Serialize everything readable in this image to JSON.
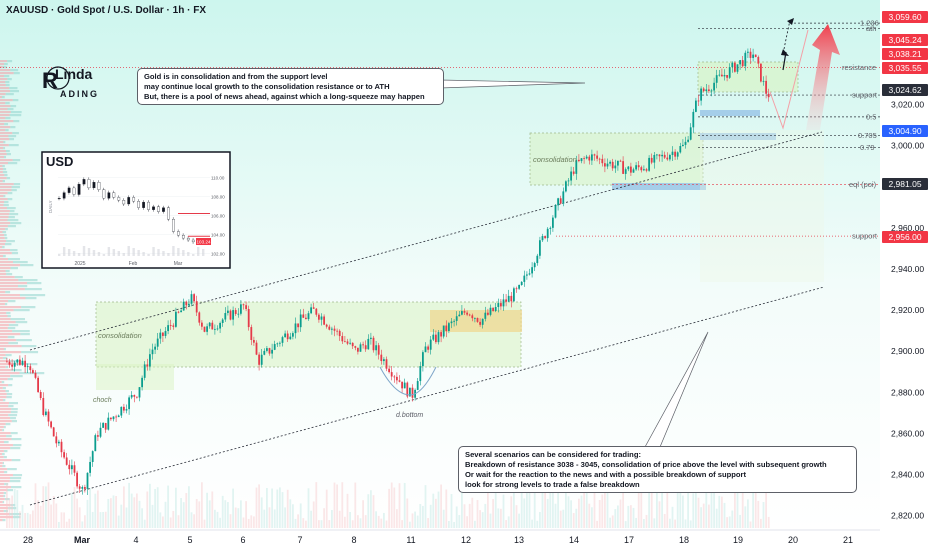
{
  "header": {
    "title": "XAUUSD · Gold Spot / U.S. Dollar · 1h · FX"
  },
  "logo": {
    "text_top": "Linda",
    "text_bottom": "ADING",
    "letter": "R"
  },
  "colors": {
    "up": "#0a9d8e",
    "down": "#e53a49",
    "price_box_red": "#f23645",
    "price_box_blue": "#2962ff",
    "neutral_box": "#2a2e39",
    "zone_green": "#c8f0b4",
    "zone_yellow": "#f0d58c"
  },
  "callouts": {
    "top": [
      "Gold is in consolidation and from the support level",
      "may continue local growth to the consolidation resistance or to ATH",
      "But, there is a pool of news ahead, against which a long-squeeze may happen"
    ],
    "bottom": [
      "Several scenarios can be considered for trading:",
      "Breakdown of resistance 3038 - 3045, consolidation of price above the level with subsequent growth",
      "Or wait for the reaction to the news and with a possible breakdown of support",
      "look for strong levels to trade a false breakdown"
    ]
  },
  "chart_data": [
    {
      "type": "candlestick",
      "title": "XAUUSD · Gold Spot / U.S. Dollar · 1h · FX",
      "x_ticks": [
        "28",
        "Mar",
        "4",
        "5",
        "6",
        "7",
        "8",
        "11",
        "12",
        "13",
        "14",
        "17",
        "18",
        "19",
        "20",
        "21"
      ],
      "y_ticks": [
        2820,
        2840,
        2860,
        2880,
        2900,
        2920,
        2940,
        2960,
        3000,
        3020
      ],
      "y_tick_labels": [
        "2,820.00",
        "2,840.00",
        "2,860.00",
        "2,880.00",
        "2,900.00",
        "2,920.00",
        "2,940.00",
        "2,960.00",
        "3,000.00",
        "3,020.00"
      ],
      "ylim": [
        2815,
        3065
      ],
      "price_path": [
        {
          "x": "28",
          "y": 2895
        },
        {
          "x": "28",
          "y": 2872
        },
        {
          "x": "28",
          "y": 2855
        },
        {
          "x": "Mar",
          "y": 2832
        },
        {
          "x": "Mar",
          "y": 2860
        },
        {
          "x": "4",
          "y": 2880
        },
        {
          "x": "4",
          "y": 2900
        },
        {
          "x": "5",
          "y": 2926
        },
        {
          "x": "5",
          "y": 2910
        },
        {
          "x": "6",
          "y": 2922
        },
        {
          "x": "6",
          "y": 2895
        },
        {
          "x": "7",
          "y": 2915
        },
        {
          "x": "7",
          "y": 2920
        },
        {
          "x": "8",
          "y": 2900
        },
        {
          "x": "8",
          "y": 2905
        },
        {
          "x": "11",
          "y": 2878
        },
        {
          "x": "11",
          "y": 2902
        },
        {
          "x": "12",
          "y": 2920
        },
        {
          "x": "12",
          "y": 2915
        },
        {
          "x": "13",
          "y": 2930
        },
        {
          "x": "13",
          "y": 2945
        },
        {
          "x": "14",
          "y": 2990
        },
        {
          "x": "14",
          "y": 2995
        },
        {
          "x": "17",
          "y": 2988
        },
        {
          "x": "17",
          "y": 2990
        },
        {
          "x": "18",
          "y": 3000
        },
        {
          "x": "18",
          "y": 3025
        },
        {
          "x": "19",
          "y": 3040
        },
        {
          "x": "19",
          "y": 3045
        },
        {
          "x": "19",
          "y": 3025
        }
      ],
      "price_boxes": [
        {
          "label": "3,059.60",
          "color": "red"
        },
        {
          "label": "3,045.24",
          "color": "red"
        },
        {
          "label": "3,038.21",
          "color": "red"
        },
        {
          "label": "3,035.55",
          "color": "red"
        },
        {
          "label": "3,024.62",
          "color": "neutral"
        },
        {
          "label": "3,004.90",
          "color": "blue"
        },
        {
          "label": "2,981.05",
          "color": "neutral"
        },
        {
          "label": "2,956.00",
          "color": "red"
        }
      ],
      "levels": [
        {
          "label": "1.236",
          "price": 3059.6
        },
        {
          "label": "ath",
          "price": 3057
        },
        {
          "label": "resistance",
          "price": 3038
        },
        {
          "label": "support",
          "price": 3024.6
        },
        {
          "label": "0.5",
          "price": 3014
        },
        {
          "label": "0.705",
          "price": 3004.9
        },
        {
          "label": "0.79",
          "price": 2999
        },
        {
          "label": "eql (poi)",
          "price": 2981
        },
        {
          "label": "support",
          "price": 2956
        }
      ],
      "annotations": [
        "consolidation",
        "consolidation",
        "choch",
        "d.bottom"
      ]
    },
    {
      "type": "line",
      "title": "USD",
      "x_ticks": [
        "2025",
        "Feb",
        "Mar"
      ],
      "y_ticks": [
        102,
        104,
        106,
        108,
        110
      ],
      "y_tick_labels": [
        "102.00",
        "104.00",
        "106.00",
        "108.00",
        "110.00"
      ],
      "ylim": [
        101.5,
        111
      ],
      "last_value_label": "103.24",
      "side_label": "DAILY",
      "values": [
        107.8,
        108.4,
        108.9,
        108.2,
        109.3,
        109.8,
        108.9,
        109.5,
        108.7,
        107.8,
        108.4,
        107.9,
        107.6,
        107.2,
        107.9,
        107.5,
        106.8,
        107.4,
        106.6,
        106.9,
        106.4,
        106.8,
        105.6,
        104.3,
        103.9,
        103.6,
        103.4,
        103.2,
        103.4,
        103.24
      ]
    }
  ]
}
